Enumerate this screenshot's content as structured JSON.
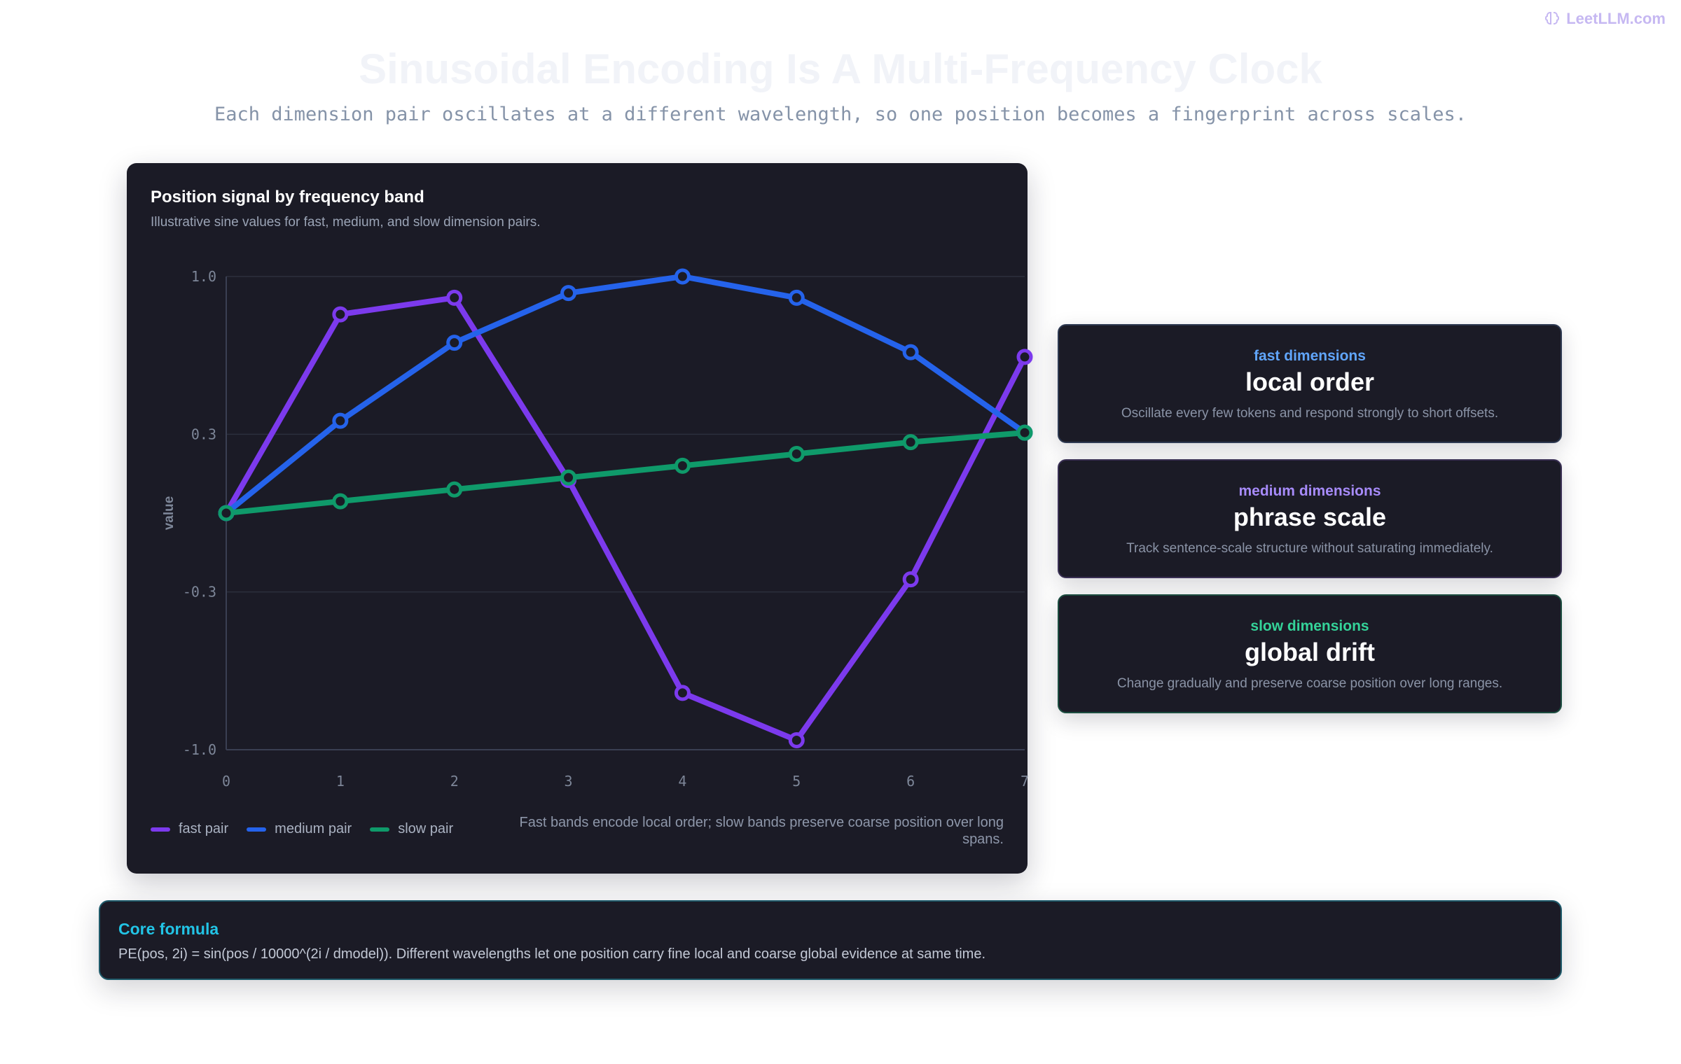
{
  "brand": {
    "name": "LeetLLM.com",
    "icon": "brain-icon"
  },
  "header": {
    "title": "Sinusoidal Encoding Is A Multi-Frequency Clock",
    "subtitle": "Each dimension pair oscillates at a different wavelength, so one position becomes a fingerprint across scales."
  },
  "chart_data": {
    "type": "line",
    "title": "Position signal by frequency band",
    "subtitle": "Illustrative sine values for fast, medium, and slow dimension pairs.",
    "xlabel": "",
    "ylabel": "value",
    "x": [
      0,
      1,
      2,
      3,
      4,
      5,
      6,
      7
    ],
    "x_ticks": [
      "0",
      "1",
      "2",
      "3",
      "4",
      "5",
      "6",
      "7"
    ],
    "y_ticks": [
      "1.0",
      "0.3",
      "-0.3",
      "-1.0"
    ],
    "y_tick_values": [
      1.0,
      0.3333,
      -0.3333,
      -1.0
    ],
    "ylim": [
      -1.0,
      1.0
    ],
    "xlim": [
      0,
      7
    ],
    "grid": true,
    "legend_position": "bottom-left",
    "series": [
      {
        "name": "fast pair",
        "color": "#7c3aed",
        "values": [
          0.0,
          0.84,
          0.91,
          0.14,
          -0.76,
          -0.96,
          -0.28,
          0.66
        ]
      },
      {
        "name": "medium pair",
        "color": "#2563eb",
        "values": [
          0.0,
          0.39,
          0.72,
          0.93,
          1.0,
          0.91,
          0.68,
          0.34
        ]
      },
      {
        "name": "slow pair",
        "color": "#0f9a6a",
        "values": [
          0.0,
          0.05,
          0.1,
          0.15,
          0.2,
          0.25,
          0.3,
          0.34
        ]
      }
    ],
    "note": "Fast bands encode local order; slow bands preserve coarse position over long spans."
  },
  "cards": [
    {
      "kicker": "fast dimensions",
      "heading": "local order",
      "desc": "Oscillate every few tokens and respond strongly to short offsets.",
      "accent": "#60a5fa"
    },
    {
      "kicker": "medium dimensions",
      "heading": "phrase scale",
      "desc": "Track sentence-scale structure without saturating immediately.",
      "accent": "#a78bfa"
    },
    {
      "kicker": "slow dimensions",
      "heading": "global drift",
      "desc": "Change gradually and preserve coarse position over long ranges.",
      "accent": "#34d399"
    }
  ],
  "formula": {
    "label": "Core formula",
    "text": "PE(pos, 2i) = sin(pos / 10000^(2i / dmodel)). Different wavelengths let one position carry fine local and coarse global evidence at same time."
  }
}
